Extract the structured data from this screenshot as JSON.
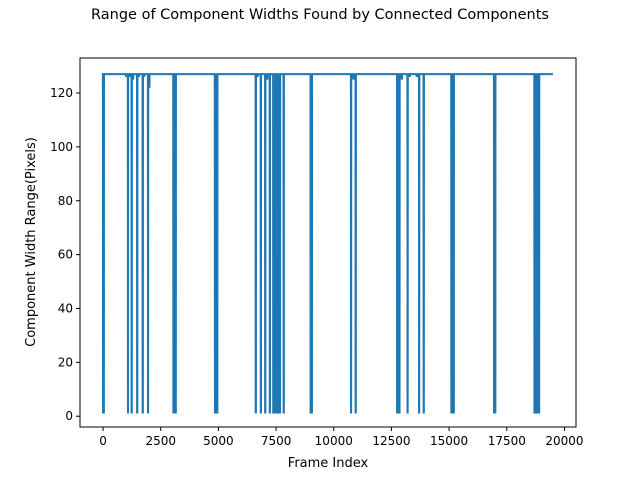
{
  "chart_data": {
    "type": "line",
    "title": "Range of Component Widths Found by Connected Components",
    "xlabel": "Frame Index",
    "ylabel": "Component Width Range(Pixels)",
    "xlim": [
      -1000,
      20500
    ],
    "ylim": [
      -4,
      133
    ],
    "xticks": [
      0,
      2500,
      5000,
      7500,
      10000,
      12500,
      15000,
      17500,
      20000
    ],
    "yticks": [
      0,
      20,
      40,
      60,
      80,
      100,
      120
    ],
    "grid": false,
    "legend": "none",
    "line_color": "#1f77b4",
    "baseline": 127,
    "series": [
      {
        "x_range": [
          0,
          19500
        ],
        "dips": [
          {
            "x": 0,
            "y": 1
          },
          {
            "x": 30,
            "y": 1
          },
          {
            "x": 1000,
            "y": 126
          },
          {
            "x": 1080,
            "y": 1
          },
          {
            "x": 1160,
            "y": 126
          },
          {
            "x": 1240,
            "y": 1
          },
          {
            "x": 1300,
            "y": 125
          },
          {
            "x": 1480,
            "y": 1
          },
          {
            "x": 1550,
            "y": 126
          },
          {
            "x": 1720,
            "y": 1
          },
          {
            "x": 1780,
            "y": 126
          },
          {
            "x": 1950,
            "y": 1
          },
          {
            "x": 2010,
            "y": 122
          },
          {
            "x": 3050,
            "y": 1
          },
          {
            "x": 3100,
            "y": 1
          },
          {
            "x": 3150,
            "y": 1
          },
          {
            "x": 4850,
            "y": 1
          },
          {
            "x": 4900,
            "y": 1
          },
          {
            "x": 4950,
            "y": 1
          },
          {
            "x": 6620,
            "y": 1
          },
          {
            "x": 6700,
            "y": 126
          },
          {
            "x": 6840,
            "y": 1
          },
          {
            "x": 7030,
            "y": 1
          },
          {
            "x": 7120,
            "y": 125
          },
          {
            "x": 7230,
            "y": 1
          },
          {
            "x": 7380,
            "y": 1
          },
          {
            "x": 7430,
            "y": 1
          },
          {
            "x": 7520,
            "y": 1
          },
          {
            "x": 7600,
            "y": 1
          },
          {
            "x": 7670,
            "y": 1
          },
          {
            "x": 7830,
            "y": 1
          },
          {
            "x": 9000,
            "y": 1
          },
          {
            "x": 9050,
            "y": 1
          },
          {
            "x": 10750,
            "y": 1
          },
          {
            "x": 10850,
            "y": 125
          },
          {
            "x": 10950,
            "y": 1
          },
          {
            "x": 12750,
            "y": 1
          },
          {
            "x": 12800,
            "y": 1
          },
          {
            "x": 12850,
            "y": 1
          },
          {
            "x": 12950,
            "y": 125
          },
          {
            "x": 13200,
            "y": 1
          },
          {
            "x": 13300,
            "y": 126
          },
          {
            "x": 13600,
            "y": 126
          },
          {
            "x": 13700,
            "y": 1
          },
          {
            "x": 13900,
            "y": 1
          },
          {
            "x": 15100,
            "y": 1
          },
          {
            "x": 15150,
            "y": 1
          },
          {
            "x": 15200,
            "y": 1
          },
          {
            "x": 16950,
            "y": 1
          },
          {
            "x": 17000,
            "y": 1
          },
          {
            "x": 18700,
            "y": 1
          },
          {
            "x": 18750,
            "y": 1
          },
          {
            "x": 18800,
            "y": 1
          },
          {
            "x": 18850,
            "y": 1
          },
          {
            "x": 18900,
            "y": 1
          }
        ]
      }
    ]
  }
}
